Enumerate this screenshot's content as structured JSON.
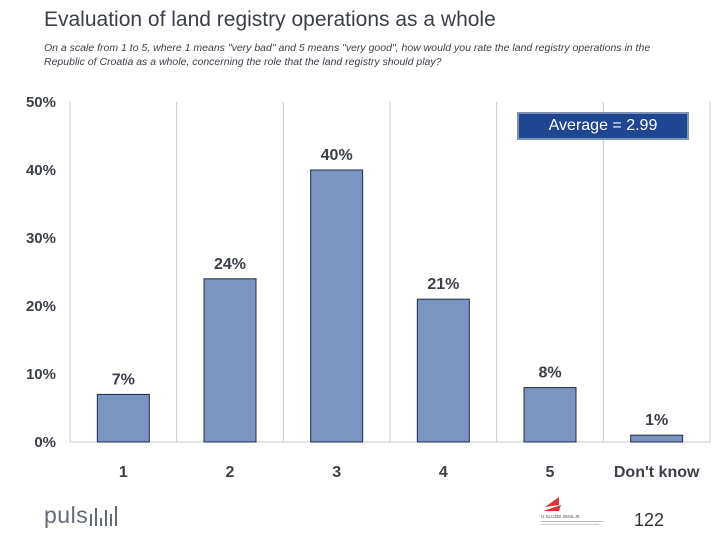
{
  "header": {
    "title": "Evaluation of land registry operations as a whole",
    "subtitle": "On a scale from 1 to 5, where 1 means \"very bad\" and 5 means \"very good\", how would you rate the land registry operations in the Republic of Croatia as a whole, concerning the role that the land registry should play?"
  },
  "average_label": "Average = 2.99",
  "footer": {
    "brand": "puls",
    "brand_icon": "puls-bars-icon",
    "partner_logo": "red-logo-icon",
    "partner_text": "U SLUŽBI ZEMLJE",
    "slide_number": "122"
  },
  "colors": {
    "bar_fill": "#7b95c1",
    "bar_stroke": "#1d2a4a",
    "avg_box": "#1f4690",
    "grid": "#c8c8c8",
    "text": "#3b3f48",
    "logo_red": "#d8343a"
  },
  "chart_data": {
    "type": "bar",
    "categories": [
      "1",
      "2",
      "3",
      "4",
      "5",
      "Don't know"
    ],
    "values": [
      7,
      24,
      40,
      21,
      8,
      1
    ],
    "value_labels": [
      "7%",
      "24%",
      "40%",
      "21%",
      "8%",
      "1%"
    ],
    "ylim": [
      0,
      50
    ],
    "yticks": [
      "0%",
      "10%",
      "20%",
      "30%",
      "40%",
      "50%"
    ],
    "grid": "vertical separators",
    "title": "Evaluation of land registry operations as a whole"
  }
}
